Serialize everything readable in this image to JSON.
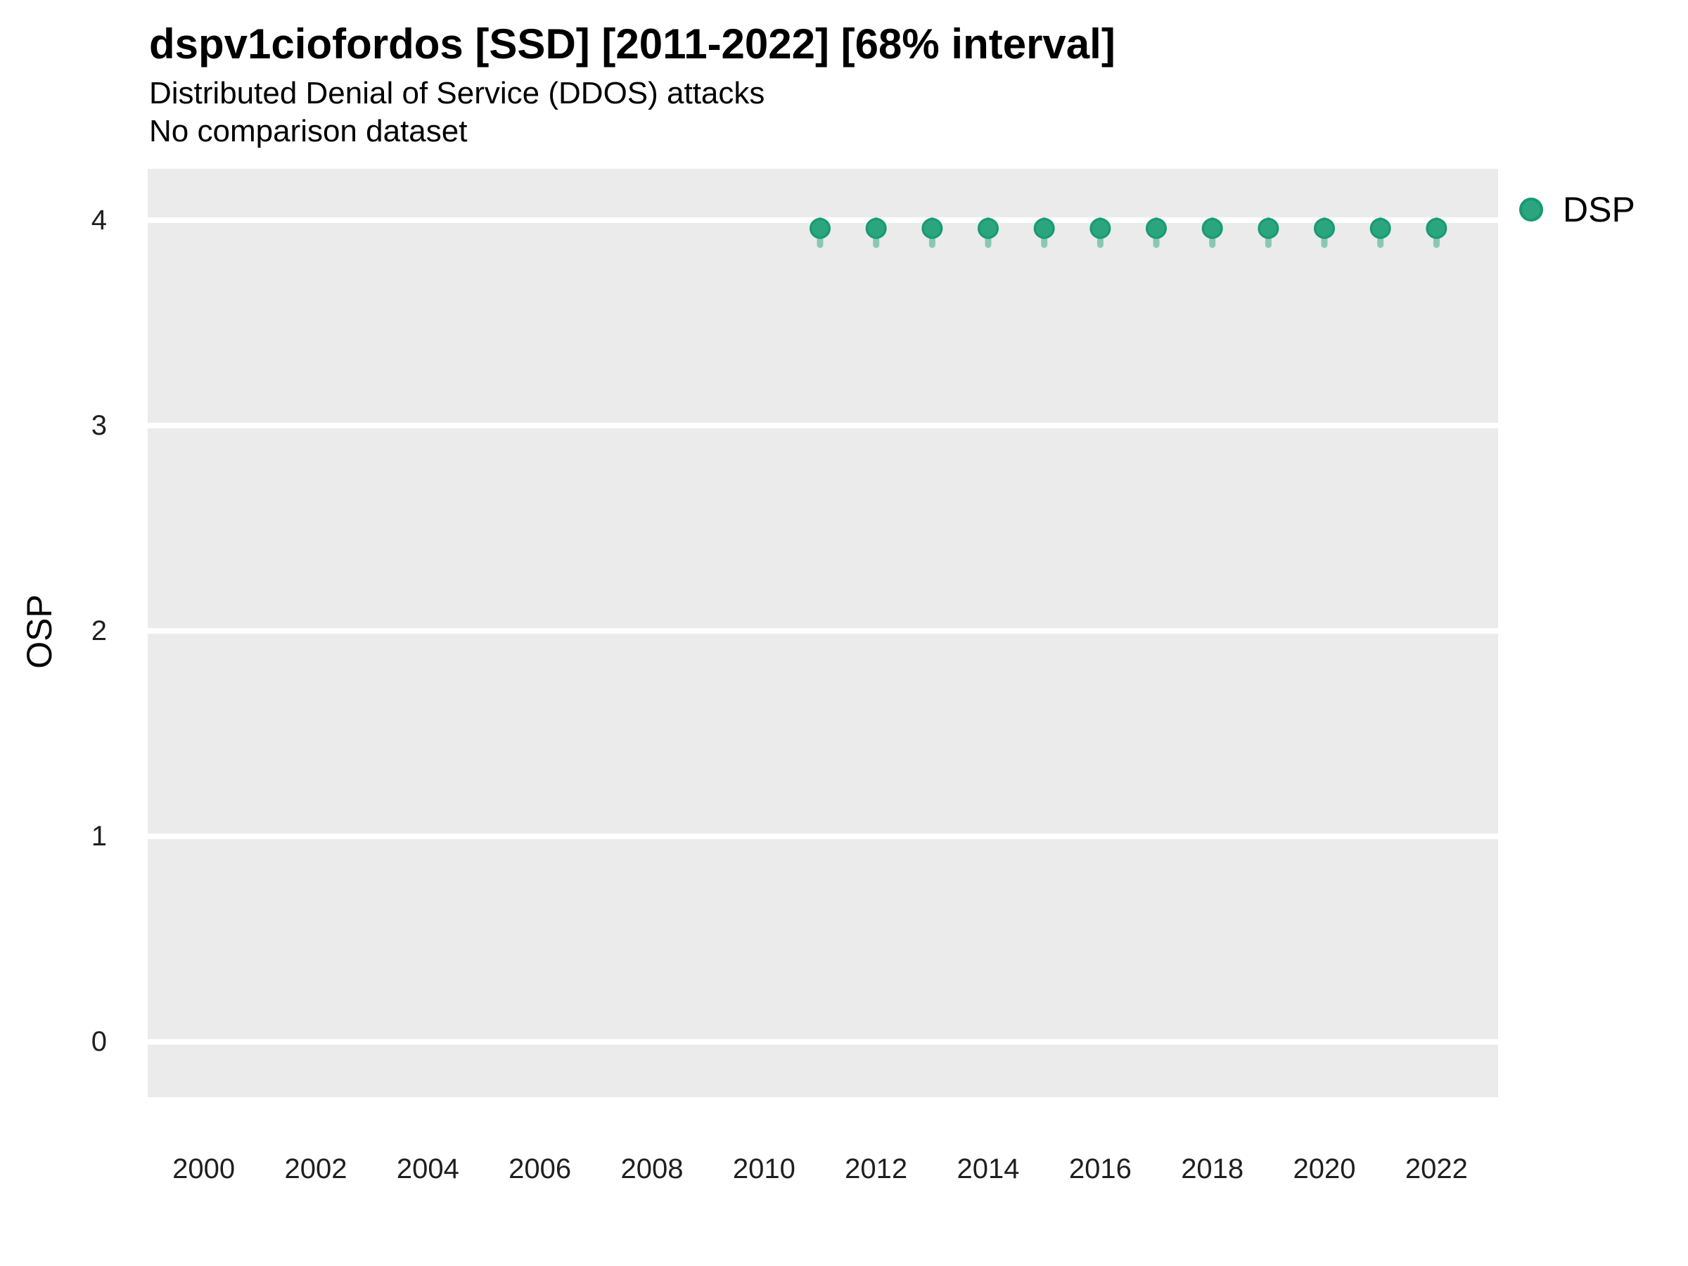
{
  "chart_data": {
    "type": "scatter",
    "title": "dspv1ciofordos [SSD] [2011-2022] [68% interval]",
    "subtitle1": "Distributed Denial of Service (DDOS) attacks",
    "subtitle2": "No comparison dataset",
    "xlabel": "",
    "ylabel": "OSP",
    "legend": {
      "label": "DSP",
      "position": "right-top"
    },
    "series": [
      {
        "name": "DSP",
        "x": [
          2011,
          2012,
          2013,
          2014,
          2015,
          2016,
          2017,
          2018,
          2019,
          2020,
          2021,
          2022
        ],
        "y": [
          3.96,
          3.96,
          3.96,
          3.96,
          3.96,
          3.96,
          3.96,
          3.96,
          3.96,
          3.96,
          3.96,
          3.96
        ],
        "interval_low": [
          3.88,
          3.88,
          3.88,
          3.88,
          3.88,
          3.88,
          3.88,
          3.88,
          3.88,
          3.88,
          3.88,
          3.88
        ],
        "interval_high": [
          4.0,
          4.0,
          4.0,
          4.0,
          4.0,
          4.0,
          4.0,
          4.0,
          4.0,
          4.0,
          4.0,
          4.0
        ]
      }
    ],
    "x_ticks": [
      2000,
      2002,
      2004,
      2006,
      2008,
      2010,
      2012,
      2014,
      2016,
      2018,
      2020,
      2022
    ],
    "y_ticks": [
      0,
      1,
      2,
      3,
      4
    ],
    "xlim": [
      1999.0,
      2023.1
    ],
    "ylim": [
      -0.27,
      4.25
    ],
    "grid": "horizontal-major",
    "colors": {
      "point_fill": "#2ba57d",
      "point_stroke": "#169a73",
      "interval": "#2ba57d",
      "interval_opacity": 0.5,
      "plot_bg": "#ebebeb",
      "grid_line": "#ffffff",
      "tick_text": "#1f1f1f"
    }
  }
}
